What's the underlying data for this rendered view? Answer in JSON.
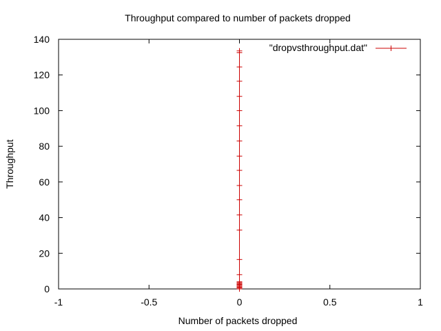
{
  "chart_data": {
    "type": "line",
    "title": "Throughput compared to number of packets dropped",
    "xlabel": "Number of packets dropped",
    "ylabel": "Throughput",
    "xlim": [
      -1,
      1
    ],
    "ylim": [
      0,
      140
    ],
    "x_ticks": [
      "-1",
      "-0.5",
      "0",
      "0.5",
      "1"
    ],
    "x_tick_values": [
      -1,
      -0.5,
      0,
      0.5,
      1
    ],
    "y_ticks": [
      "0",
      "20",
      "40",
      "60",
      "80",
      "100",
      "120",
      "140"
    ],
    "y_tick_values": [
      0,
      20,
      40,
      60,
      80,
      100,
      120,
      140
    ],
    "grid": false,
    "legend_position": "top-right",
    "series": [
      {
        "name": "\"dropvsthroughput.dat\"",
        "color": "#cc0000",
        "marker": "plus",
        "x": [
          0,
          0,
          0,
          0,
          0,
          0,
          0,
          0,
          0,
          0,
          0,
          0,
          0,
          0,
          0,
          0,
          0,
          0,
          0,
          0,
          0,
          0,
          0,
          0,
          0
        ],
        "y": [
          0,
          0.5,
          1,
          1.5,
          2,
          2.5,
          3,
          3.5,
          4,
          8,
          16.5,
          33,
          41.5,
          50,
          58,
          66.5,
          74.5,
          83,
          91.5,
          100,
          108,
          116.5,
          124.5,
          132.5,
          133.5
        ]
      }
    ]
  }
}
